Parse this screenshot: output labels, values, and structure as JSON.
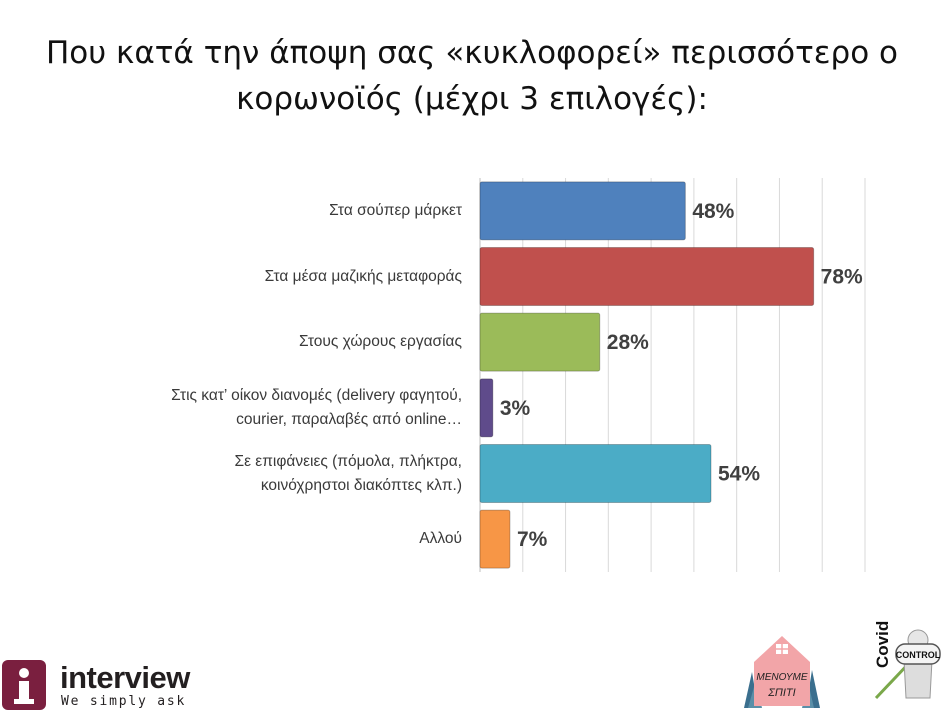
{
  "title": {
    "line1": "Που κατά την άποψη σας «κυκλοφορεί» περισσότερο ο",
    "line2": "κορωνοϊός (μέχρι 3 επιλογές):"
  },
  "chart_data": {
    "type": "bar",
    "orientation": "horizontal",
    "categories": [
      [
        "Στα σούπερ μάρκετ"
      ],
      [
        "Στα μέσα μαζικής μεταφοράς"
      ],
      [
        "Στους χώρους εργασίας"
      ],
      [
        "Στις κατ’ οίκον διανομές (delivery φαγητού,",
        "courier, παραλαβές από online…"
      ],
      [
        "Σε επιφάνειες (πόμολα, πλήκτρα,",
        "κοινόχρηστοι διακόπτες κλπ.)"
      ],
      [
        "Αλλού"
      ]
    ],
    "values": [
      48,
      78,
      28,
      3,
      54,
      7
    ],
    "value_labels": [
      "48%",
      "78%",
      "28%",
      "3%",
      "54%",
      "7%"
    ],
    "colors": [
      "#4f81bd",
      "#c0504d",
      "#9bbb59",
      "#5f4b8b",
      "#4bacc6",
      "#f79646"
    ],
    "xlim": [
      0,
      90
    ],
    "grid": true,
    "legend": "none"
  },
  "logo": {
    "name": "interview",
    "tagline": "We simply ask"
  },
  "badges": {
    "stay_home": [
      "ΜΕΝΟΥΜΕ",
      "ΣΠΙΤΙ"
    ],
    "covid_word": "Covid",
    "control_word": "CONTROL"
  }
}
